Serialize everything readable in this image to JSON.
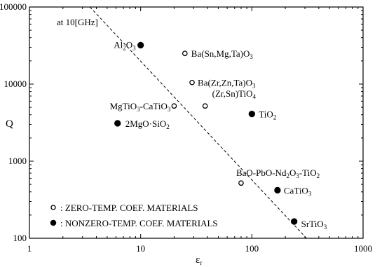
{
  "chart_data": {
    "type": "scatter",
    "x_scale": "log",
    "y_scale": "log",
    "xlim": [
      1,
      1000
    ],
    "ylim": [
      100,
      100000
    ],
    "xlabel": "ε",
    "xlabel_sub": "r",
    "ylabel": "Q",
    "condition_note": "at 10[GHz]",
    "x_tick_labels": [
      "1",
      "10",
      "100",
      "1000"
    ],
    "y_tick_labels": [
      "100",
      "1000",
      "10000",
      "100000"
    ],
    "grid": false,
    "legend": [
      {
        "marker": "open",
        "text": ": ZERO-TEMP. COEF. MATERIALS"
      },
      {
        "marker": "filled",
        "text": ": NONZERO-TEMP. COEF. MATERIALS"
      }
    ],
    "series": [
      {
        "marker": "open",
        "points": [
          {
            "x": 25,
            "y": 25000,
            "label": "Ba(Sn,Mg,Ta)O3"
          },
          {
            "x": 29,
            "y": 10500,
            "label": "Ba(Zr,Zn,Ta)O3"
          },
          {
            "x": 20,
            "y": 5200,
            "label": "MgTiO3-CaTiO3"
          },
          {
            "x": 38,
            "y": 5200,
            "label": "(Zr,Sn)TiO4"
          },
          {
            "x": 80,
            "y": 520,
            "label": "BaO-PbO-Nd2O3-TiO2"
          }
        ]
      },
      {
        "marker": "filled",
        "points": [
          {
            "x": 10,
            "y": 32000,
            "label": "Al2O3"
          },
          {
            "x": 100,
            "y": 4100,
            "label": "TiO2"
          },
          {
            "x": 6.2,
            "y": 3100,
            "label": "2MgO·SiO2"
          },
          {
            "x": 170,
            "y": 420,
            "label": "CaTiO3"
          },
          {
            "x": 240,
            "y": 165,
            "label": "SrTiO3"
          }
        ]
      }
    ],
    "trend_line": {
      "style": "dashed",
      "from": {
        "x": 3.5,
        "y": 100000
      },
      "to": {
        "x": 310,
        "y": 100
      }
    }
  }
}
